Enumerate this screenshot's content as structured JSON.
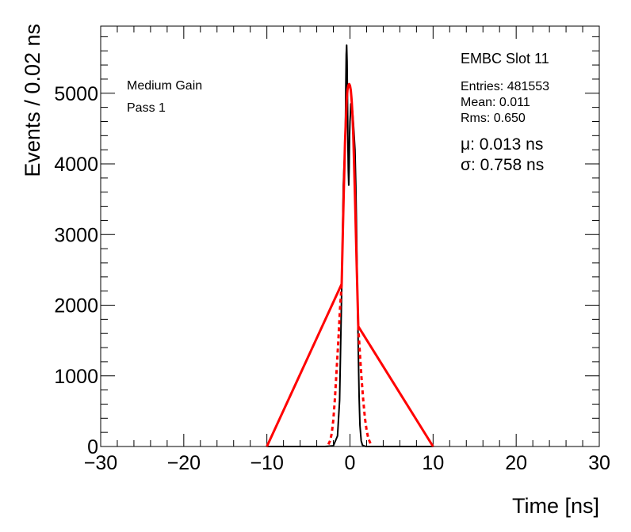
{
  "chart_data": {
    "type": "line",
    "xlabel": "Time [ns]",
    "ylabel": "Events / 0.02 ns",
    "xlim": [
      -30,
      30
    ],
    "ylim": [
      0,
      5950
    ],
    "x_ticks": [
      -30,
      -20,
      -10,
      0,
      10,
      20,
      30
    ],
    "y_ticks": [
      0,
      1000,
      2000,
      3000,
      4000,
      5000
    ],
    "annotations": {
      "gain": "Medium Gain",
      "pass": "Pass 1",
      "stats_title": "EMBC Slot 11",
      "entries": "Entries: 481553",
      "mean": "Mean: 0.011",
      "rms": "Rms: 0.650",
      "fit_mu": "μ: 0.013 ns",
      "fit_sigma": "σ: 0.758 ns"
    },
    "series": [
      {
        "color": "#000000",
        "style": "solid",
        "x": [
          -10,
          -3.0,
          -2.0,
          -1.5,
          -1.25,
          -1.0,
          -0.8,
          -0.7,
          -0.6,
          -0.55,
          -0.5,
          -0.45,
          -0.4,
          -0.35,
          -0.3,
          -0.25,
          -0.2,
          -0.15,
          -0.1,
          -0.05,
          0.0,
          0.05,
          0.1,
          0.15,
          0.2,
          0.3,
          0.4,
          0.5,
          0.6,
          0.7,
          0.8,
          0.9,
          1.0,
          1.1,
          1.2,
          1.35,
          1.5,
          1.75,
          2.0,
          3.0,
          10
        ],
        "y": [
          0,
          0,
          10,
          150,
          650,
          2200,
          3700,
          4000,
          4200,
          4500,
          5100,
          5550,
          5680,
          5450,
          4900,
          4300,
          3900,
          3700,
          3950,
          4400,
          4600,
          4700,
          4850,
          4800,
          4820,
          4750,
          4600,
          4400,
          4200,
          3700,
          3000,
          2100,
          1350,
          700,
          300,
          80,
          20,
          5,
          0,
          0,
          0
        ]
      },
      {
        "color": "#ff0000",
        "style": "solid",
        "x": [
          -10,
          -1.0,
          -0.8,
          -0.6,
          -0.4,
          -0.3,
          -0.2,
          -0.1,
          0.0,
          0.1,
          0.2,
          0.3,
          0.4,
          0.6,
          0.8,
          1.0,
          10
        ],
        "y": [
          0,
          2300,
          3350,
          4300,
          4900,
          5050,
          5110,
          5130,
          5110,
          5040,
          4900,
          4700,
          4400,
          3550,
          2600,
          1700,
          0
        ]
      },
      {
        "color": "#ff0000",
        "style": "dashed",
        "x": [
          -2.6,
          -2.4,
          -2.2,
          -2.0,
          -1.8,
          -1.6,
          -1.4,
          -1.2,
          -1.0
        ],
        "y": [
          30,
          80,
          180,
          380,
          700,
          1100,
          1500,
          1950,
          2300
        ]
      },
      {
        "color": "#ff0000",
        "style": "dashed",
        "x": [
          1.0,
          1.2,
          1.4,
          1.6,
          1.8,
          2.0,
          2.2,
          2.4,
          2.6
        ],
        "y": [
          1700,
          1300,
          950,
          650,
          400,
          230,
          120,
          60,
          20
        ]
      }
    ]
  }
}
